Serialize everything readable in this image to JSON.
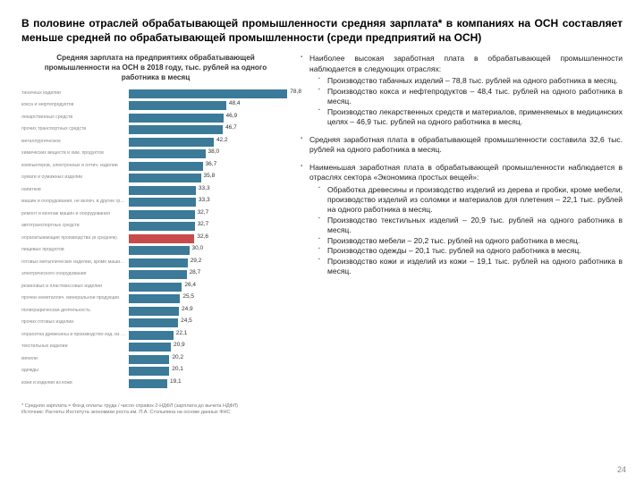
{
  "page_title": "В половине отраслей обрабатывающей промышленности средняя зарплата* в компаниях на ОСН составляет меньше средней по обрабатывающей промышленности (среди предприятий на ОСН)",
  "page_number": "24",
  "chart": {
    "type": "bar",
    "title": "Средняя зарплата на предприятиях обрабатывающей промышленности на ОСН в 2018 году, тыс. рублей на одного работника в месяц",
    "xmax": 80,
    "default_color": "#3b7a99",
    "highlight_color": "#c94a4a",
    "label_color": "#888888",
    "value_fontsize": 6.5,
    "bars": [
      {
        "label": "табачных изделий",
        "value": 78.8,
        "highlight": false
      },
      {
        "label": "кокса и нефтепродуктов",
        "value": 48.4,
        "highlight": false
      },
      {
        "label": "лекарственных средств",
        "value": 46.9,
        "highlight": false
      },
      {
        "label": "прочих транспортных средств",
        "value": 46.7,
        "highlight": false
      },
      {
        "label": "металлургическое",
        "value": 42.2,
        "highlight": false
      },
      {
        "label": "химических веществ и хим. продуктов",
        "value": 38.0,
        "highlight": false
      },
      {
        "label": "компьютеров, электронных и оптич. изделий",
        "value": 36.7,
        "highlight": false
      },
      {
        "label": "бумаги и бумажных изделий",
        "value": 35.8,
        "highlight": false
      },
      {
        "label": "напитков",
        "value": 33.3,
        "highlight": false
      },
      {
        "label": "машин и оборудования, не включ. в другие группировки",
        "value": 33.3,
        "highlight": false
      },
      {
        "label": "ремонт и монтаж машин и оборудования",
        "value": 32.7,
        "highlight": false
      },
      {
        "label": "автотранспортных средств",
        "value": 32.7,
        "highlight": false
      },
      {
        "label": "обрабатывающие производства (в среднем)",
        "value": 32.6,
        "highlight": true
      },
      {
        "label": "пищевых продуктов",
        "value": 30.0,
        "highlight": false
      },
      {
        "label": "готовых металлических изделий, кроме машин и обор.",
        "value": 29.2,
        "highlight": false
      },
      {
        "label": "электрического оборудования",
        "value": 28.7,
        "highlight": false
      },
      {
        "label": "резиновых и пластмассовых изделий",
        "value": 26.4,
        "highlight": false
      },
      {
        "label": "прочей неметаллич. минеральной продукции",
        "value": 25.5,
        "highlight": false
      },
      {
        "label": "полиграфическая деятельность",
        "value": 24.9,
        "highlight": false
      },
      {
        "label": "прочих готовых изделий",
        "value": 24.5,
        "highlight": false
      },
      {
        "label": "обработка древесины и производство изд. из дерева",
        "value": 22.1,
        "highlight": false
      },
      {
        "label": "текстильных изделий",
        "value": 20.9,
        "highlight": false
      },
      {
        "label": "мебели",
        "value": 20.2,
        "highlight": false
      },
      {
        "label": "одежды",
        "value": 20.1,
        "highlight": false
      },
      {
        "label": "кожи и изделий из кожи",
        "value": 19.1,
        "highlight": false
      }
    ]
  },
  "footnote_lines": [
    "* Средняя зарплата = Фонд оплаты труда / число справок 2-НДФЛ (зарплата до вычета НДФЛ)",
    "Источник: Расчеты Института экономики роста им. П.А. Столыпина на основе данных ФНС"
  ],
  "bullets": [
    {
      "text": "Наиболее высокая заработная плата в обрабатывающей промышленности наблюдается в следующих отраслях:",
      "sub": [
        "Производство табачных изделий – 78,8 тыс. рублей на одного работника в месяц.",
        "Производство кокса и нефтепродуктов – 48,4 тыс. рублей на одного работника в месяц.",
        "Производство лекарственных средств и материалов, применяемых в медицинских целях – 46,9 тыс. рублей на одного работника в месяц."
      ]
    },
    {
      "text": "Средняя заработная плата в обрабатывающей промышленности составила 32,6 тыс. рублей на одного работника в месяц.",
      "sub": []
    },
    {
      "text": "Наименьшая заработная плата в обрабатывающей промышленности наблюдается в отраслях сектора «Экономика простых вещей»:",
      "sub": [
        "Обработка древесины и производство изделий из дерева и пробки, кроме мебели, производство изделий из соломки и материалов для плетения – 22,1 тыс. рублей на одного работника в месяц.",
        "Производство текстильных изделий – 20,9 тыс. рублей на одного работника в месяц.",
        "Производство мебели – 20,2 тыс. рублей на одного работника в месяц.",
        "Производство одежды – 20,1 тыс. рублей на одного работника в месяц.",
        "Производство кожи и изделий из кожи – 19,1 тыс. рублей на одного работника в месяц."
      ]
    }
  ]
}
